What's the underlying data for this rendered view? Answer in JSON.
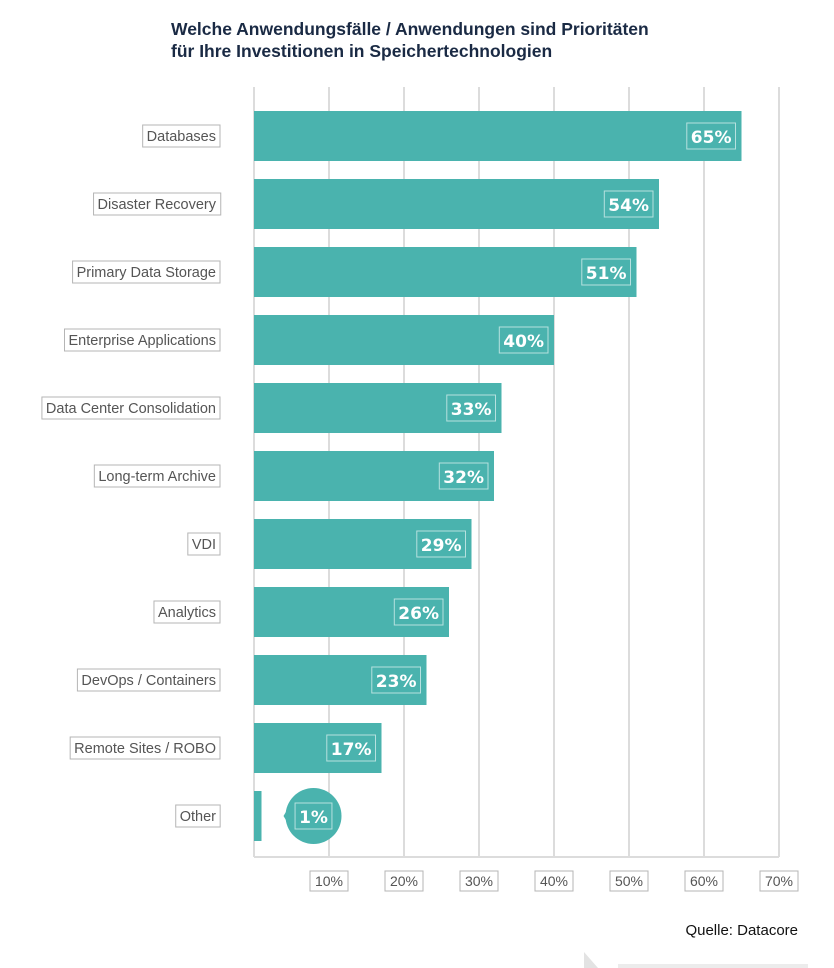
{
  "title_line1": "Welche Anwendungsfälle / Anwendungen sind Prioritäten",
  "title_line2": "für Ihre Investitionen in Speichertechnologien",
  "source": "Quelle: Datacore",
  "colors": {
    "bar": "#4ab3ae",
    "grid": "#dcdcdc",
    "label_border": "#b5b5b5",
    "label_text": "#555555",
    "value_text": "#ffffff",
    "title": "#1a2a44"
  },
  "chart_data": {
    "type": "bar",
    "orientation": "horizontal",
    "categories": [
      "Databases",
      "Disaster Recovery",
      "Primary Data Storage",
      "Enterprise Applications",
      "Data Center Consolidation",
      "Long-term Archive",
      "VDI",
      "Analytics",
      "DevOps / Containers",
      "Remote Sites / ROBO",
      "Other"
    ],
    "values": [
      65,
      54,
      51,
      40,
      33,
      32,
      29,
      26,
      23,
      17,
      1
    ],
    "value_labels": [
      "65%",
      "54%",
      "51%",
      "40%",
      "33%",
      "32%",
      "29%",
      "26%",
      "23%",
      "17%",
      "1%"
    ],
    "xticks": [
      "10%",
      "20%",
      "30%",
      "40%",
      "50%",
      "60%",
      "70%"
    ],
    "xlim": [
      0,
      70
    ],
    "grid": true,
    "title": "Welche Anwendungsfälle / Anwendungen sind Prioritäten für Ihre Investitionen in Speichertechnologien"
  }
}
